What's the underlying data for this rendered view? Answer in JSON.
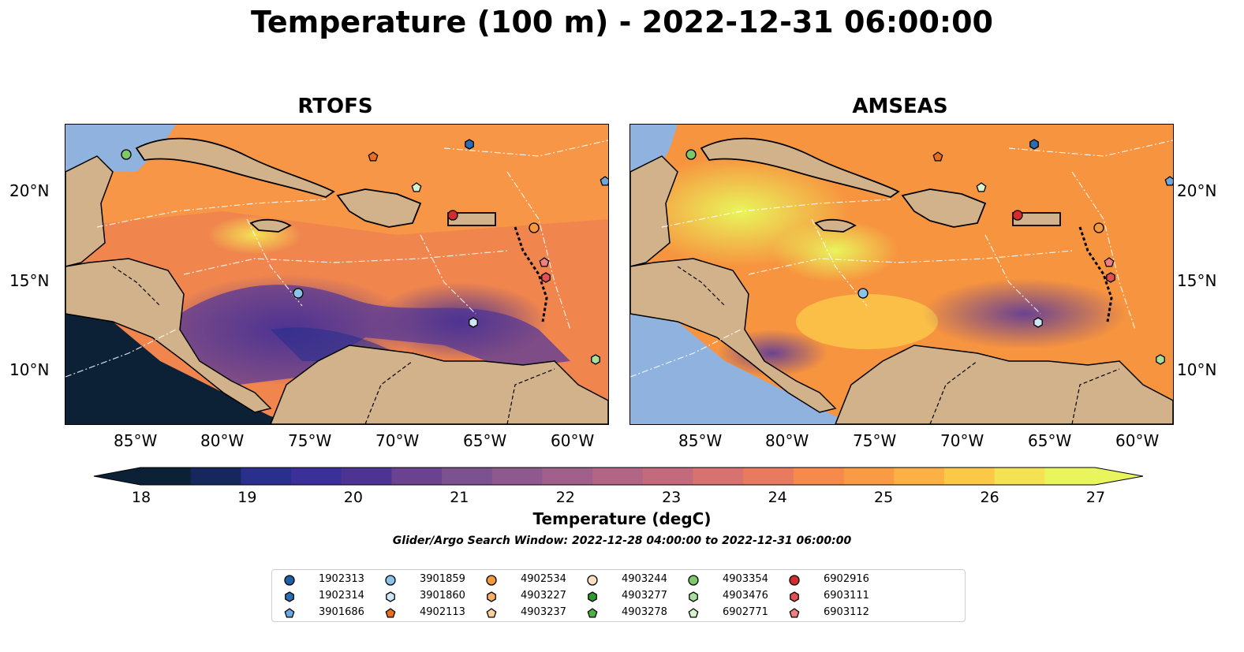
{
  "title": "Temperature (100 m) - 2022-12-31 06:00:00",
  "panels": [
    {
      "name": "RTOFS"
    },
    {
      "name": "AMSEAS"
    }
  ],
  "axis": {
    "lon_labels": [
      "85°W",
      "80°W",
      "75°W",
      "70°W",
      "65°W",
      "60°W"
    ],
    "lat_labels": [
      "20°N",
      "15°N",
      "10°N"
    ]
  },
  "colorbar": {
    "ticks": [
      "18",
      "19",
      "20",
      "21",
      "22",
      "23",
      "24",
      "25",
      "26",
      "27"
    ],
    "label": "Temperature (degC)",
    "colors": [
      "#0c2036",
      "#15275c",
      "#2a2f8e",
      "#3b2f9a",
      "#4d3392",
      "#6a4290",
      "#7c5190",
      "#8e5a8d",
      "#a1608b",
      "#b26686",
      "#c36a7c",
      "#d77270",
      "#e87b5f",
      "#f58a4a",
      "#f99b44",
      "#fdb043",
      "#fbc848",
      "#f5e154",
      "#e9f55c"
    ],
    "min_color": "#0c2036",
    "max_color": "#e9f55c"
  },
  "search_window": "Glider/Argo Search Window: 2022-12-28 04:00:00 to 2022-12-31 06:00:00",
  "legend": [
    {
      "id": "1902313",
      "marker": "circle",
      "color": "#1f5fa8"
    },
    {
      "id": "1902314",
      "marker": "hexagon",
      "color": "#2a6db5"
    },
    {
      "id": "3901686",
      "marker": "pentagon",
      "color": "#6fa6dd"
    },
    {
      "id": "3901859",
      "marker": "circle",
      "color": "#8cc3ea"
    },
    {
      "id": "3901860",
      "marker": "hexagon",
      "color": "#cfe6f7"
    },
    {
      "id": "4902113",
      "marker": "pentagon",
      "color": "#e8701c"
    },
    {
      "id": "4902534",
      "marker": "circle",
      "color": "#f39a3d"
    },
    {
      "id": "4903227",
      "marker": "hexagon",
      "color": "#f7b06a"
    },
    {
      "id": "4903237",
      "marker": "pentagon",
      "color": "#fbcf9c"
    },
    {
      "id": "4903244",
      "marker": "circle",
      "color": "#fbe0c4"
    },
    {
      "id": "4903277",
      "marker": "hexagon",
      "color": "#2f9a2f"
    },
    {
      "id": "4903278",
      "marker": "pentagon",
      "color": "#4fb046"
    },
    {
      "id": "4903354",
      "marker": "circle",
      "color": "#7cc86b"
    },
    {
      "id": "4903476",
      "marker": "hexagon",
      "color": "#a7e09a"
    },
    {
      "id": "6902771",
      "marker": "pentagon",
      "color": "#d6f3cc"
    },
    {
      "id": "6902916",
      "marker": "circle",
      "color": "#d42b2b"
    },
    {
      "id": "6903111",
      "marker": "hexagon",
      "color": "#e25050"
    },
    {
      "id": "6903112",
      "marker": "pentagon",
      "color": "#f08080"
    }
  ]
}
